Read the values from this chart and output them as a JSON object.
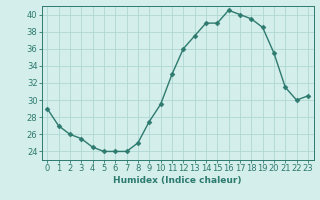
{
  "x": [
    0,
    1,
    2,
    3,
    4,
    5,
    6,
    7,
    8,
    9,
    10,
    11,
    12,
    13,
    14,
    15,
    16,
    17,
    18,
    19,
    20,
    21,
    22,
    23
  ],
  "y": [
    29,
    27,
    26,
    25.5,
    24.5,
    24,
    24,
    24,
    25,
    27.5,
    29.5,
    33,
    36,
    37.5,
    39,
    39,
    40.5,
    40,
    39.5,
    38.5,
    35.5,
    31.5,
    30,
    30.5
  ],
  "line_color": "#2d7a6e",
  "marker_color": "#2d7a6e",
  "bg_color": "#d4eeeb",
  "grid_color": "#b0d8d3",
  "xlabel": "Humidex (Indice chaleur)",
  "ylim": [
    23,
    41
  ],
  "xlim": [
    -0.5,
    23.5
  ],
  "yticks": [
    24,
    26,
    28,
    30,
    32,
    34,
    36,
    38,
    40
  ],
  "xticks": [
    0,
    1,
    2,
    3,
    4,
    5,
    6,
    7,
    8,
    9,
    10,
    11,
    12,
    13,
    14,
    15,
    16,
    17,
    18,
    19,
    20,
    21,
    22,
    23
  ],
  "xlabel_fontsize": 6.5,
  "tick_fontsize": 6.0,
  "marker_size": 2.5,
  "line_width": 1.0
}
